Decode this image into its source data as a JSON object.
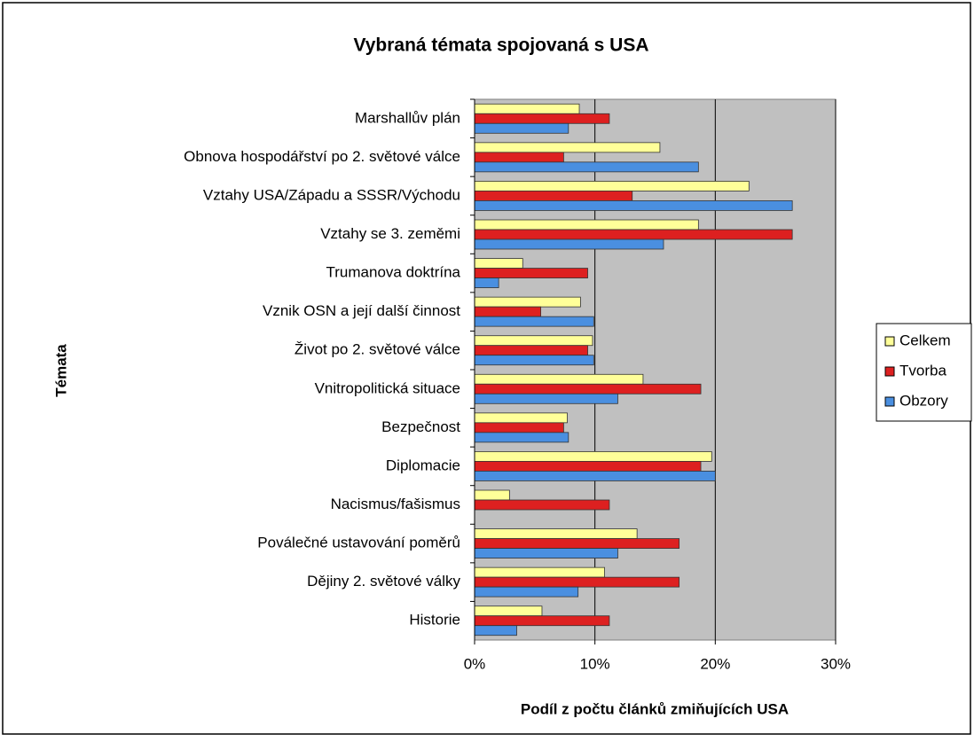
{
  "chart_data": {
    "type": "bar",
    "orientation": "horizontal",
    "title": "Vybraná témata spojovaná s USA",
    "x_label": "Podíl z počtu článků zmiňujících USA",
    "y_label": "Témata",
    "categories": [
      "Marshallův plán",
      "Obnova hospodářství po 2. světové válce",
      "Vztahy USA/Západu a SSSR/Východu",
      "Vztahy se 3. zeměmi",
      "Trumanova doktrína",
      "Vznik OSN a její další činnost",
      "Život po 2. světové válce",
      "Vnitropolitická situace",
      "Bezpečnost",
      "Diplomacie",
      "Nacismus/fašismus",
      "Poválečné ustavování poměrů",
      "Dějiny 2. světové války",
      "Historie"
    ],
    "series": [
      {
        "name": "Celkem",
        "color": "#ffff99",
        "values": [
          8.7,
          15.4,
          22.8,
          18.6,
          4.0,
          8.8,
          9.8,
          14.0,
          7.7,
          19.7,
          2.9,
          13.5,
          10.8,
          5.6
        ]
      },
      {
        "name": "Tvorba",
        "color": "#dd2020",
        "values": [
          11.2,
          7.4,
          13.1,
          26.4,
          9.4,
          5.5,
          9.4,
          18.8,
          7.4,
          18.8,
          11.2,
          17.0,
          17.0,
          11.2
        ]
      },
      {
        "name": "Obzory",
        "color": "#4a8fe0",
        "values": [
          7.8,
          18.6,
          26.4,
          15.7,
          2.0,
          9.9,
          9.9,
          11.9,
          7.8,
          20.0,
          0,
          11.9,
          8.6,
          3.5
        ]
      }
    ],
    "xlim": [
      0,
      30
    ],
    "xticks": [
      {
        "value": 0,
        "label": "0%"
      },
      {
        "value": 10,
        "label": "10%"
      },
      {
        "value": 20,
        "label": "20%"
      },
      {
        "value": 30,
        "label": "30%"
      }
    ],
    "grid": true,
    "legend": "right"
  }
}
